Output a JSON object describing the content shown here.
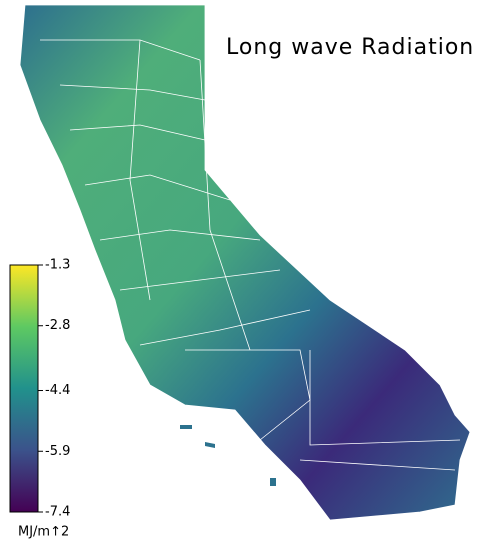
{
  "title": "Long wave Radiation",
  "colorbar": {
    "label": "MJ/m↑2",
    "lim": [
      -7.4,
      -1.3
    ],
    "ticks": [
      -1.3,
      -2.8,
      -4.4,
      -5.9,
      -7.4
    ]
  }
}
